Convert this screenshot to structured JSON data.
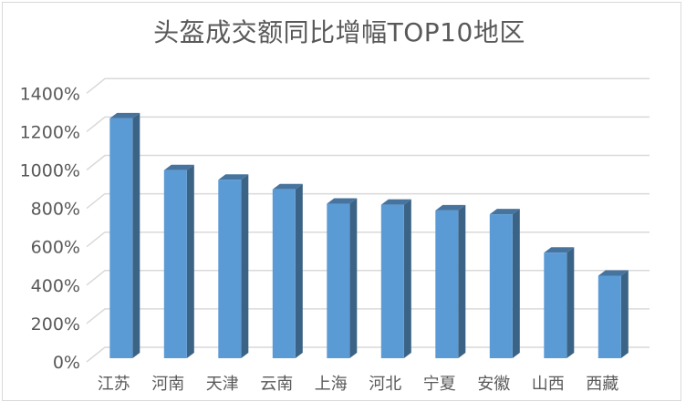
{
  "chart_data": {
    "type": "bar",
    "style": "3d-column",
    "title": "头盔成交额同比增幅TOP10地区",
    "categories": [
      "江苏",
      "河南",
      "天津",
      "云南",
      "上海",
      "河北",
      "宁夏",
      "安徽",
      "山西",
      "西藏"
    ],
    "values": [
      1250,
      980,
      930,
      880,
      805,
      800,
      770,
      750,
      550,
      430
    ],
    "value_unit": "%",
    "xlabel": "",
    "ylabel": "",
    "ylim": [
      0,
      1400
    ],
    "y_tick_step": 200,
    "y_ticks": [
      "0%",
      "200%",
      "400%",
      "600%",
      "800%",
      "1000%",
      "1200%",
      "1400%"
    ],
    "grid": "horizontal",
    "legend": "none",
    "colors": {
      "bar_front": "#5B9BD5",
      "bar_side": "#3B6385",
      "bar_top": "#47749F",
      "gridline": "#D9D9D9",
      "axis_text": "#595959",
      "title_text": "#595959",
      "frame_border": "#D9D9D9",
      "background": "#FFFFFF"
    }
  }
}
